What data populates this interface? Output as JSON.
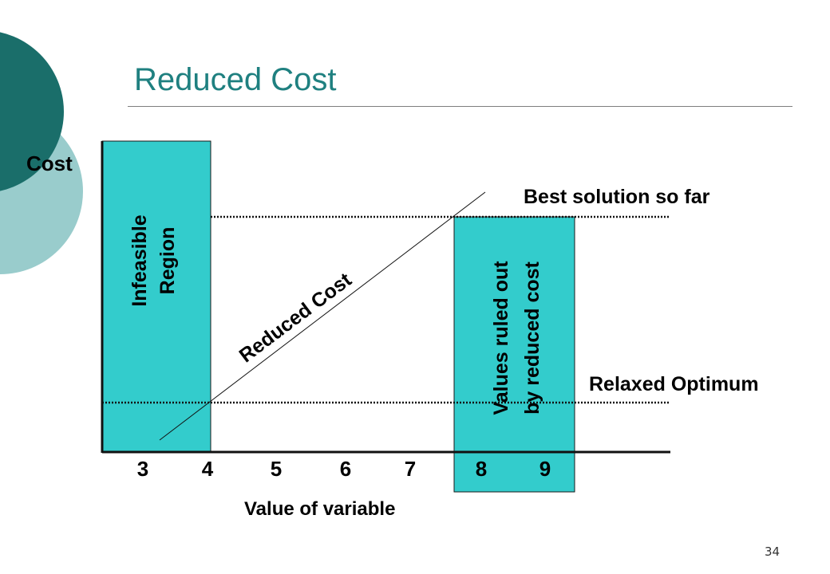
{
  "slide": {
    "title": "Reduced Cost",
    "page_number": "34",
    "colors": {
      "accent": "#1f8080",
      "region_fill": "#33cccc",
      "deco_dark": "#1a6e6a",
      "deco_light": "#99cccc"
    }
  },
  "diagram": {
    "y_axis_label": "Cost",
    "x_axis_label": "Value of variable",
    "x_ticks": [
      "3",
      "4",
      "5",
      "6",
      "7",
      "8",
      "9"
    ],
    "infeasible_region": {
      "line1": "Infeasible",
      "line2": "Region"
    },
    "ruled_out_region": {
      "line1": "Values ruled out",
      "line2": "by reduced cost"
    },
    "reduced_cost_line_label": "Reduced Cost",
    "best_solution_label": "Best solution so far",
    "relaxed_optimum_label": "Relaxed Optimum"
  }
}
